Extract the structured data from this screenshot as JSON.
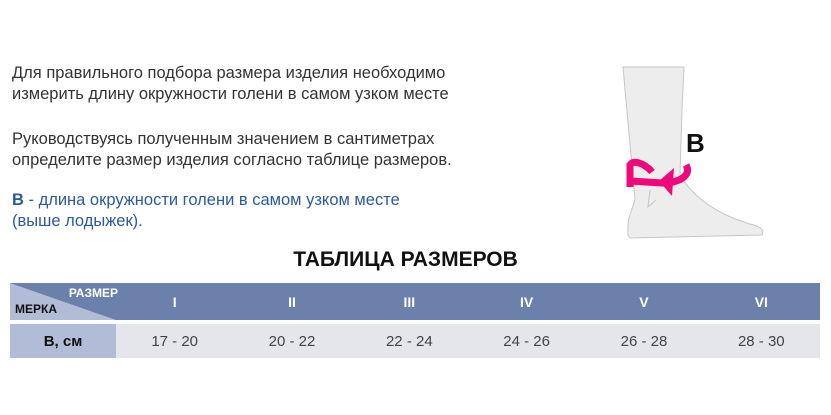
{
  "intro": {
    "line1": "Для правильного подбора размера изделия необходимо",
    "line2": "измерить длину окружности голени в самом узком месте",
    "line3": "Руководствуясь полученным значением в сантиметрах",
    "line4": "определите размер изделия согласно таблице размеров.",
    "b_label": "B",
    "b_text": " - длина окружности голени в самом узком месте",
    "b_text2": "(выше лодыжек)."
  },
  "figure": {
    "label": "B",
    "arrow_color": "#f0087a"
  },
  "table": {
    "title": "ТАБЛИЦА РАЗМЕРОВ",
    "corner_top": "РАЗМЕР",
    "corner_bottom": "МЕРКА",
    "sizes": [
      "I",
      "II",
      "III",
      "IV",
      "V",
      "VI"
    ],
    "row_label": "B, см",
    "values": [
      "17 - 20",
      "20 - 22",
      "22 - 24",
      "24 - 26",
      "26 - 28",
      "28 - 30"
    ]
  }
}
